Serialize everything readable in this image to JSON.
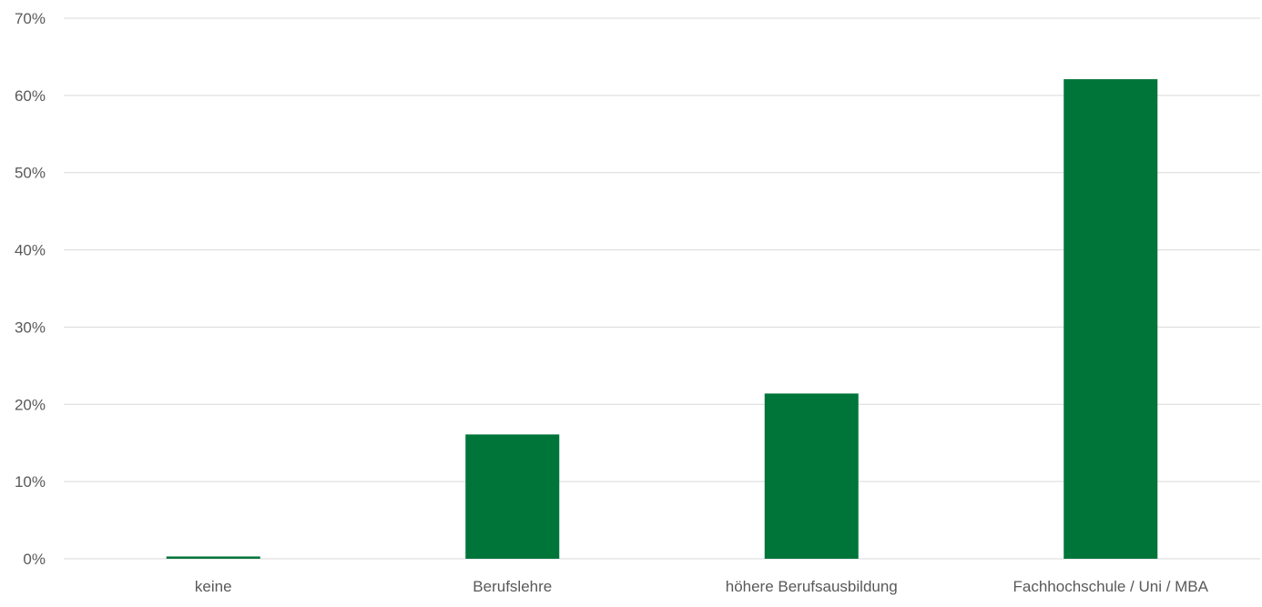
{
  "chart_data": {
    "type": "bar",
    "categories": [
      "keine",
      "Berufslehre",
      "höhere Berufsausbildung",
      "Fachhochschule / Uni / MBA"
    ],
    "values": [
      0.3,
      16.1,
      21.4,
      62.1
    ],
    "ylim": [
      0,
      70
    ],
    "yticks": [
      0,
      10,
      20,
      30,
      40,
      50,
      60,
      70
    ],
    "tick_suffix": "%",
    "grid": true,
    "bar_color": "#00753a",
    "grid_color": "#d9d9d9",
    "text_color": "#595959"
  }
}
